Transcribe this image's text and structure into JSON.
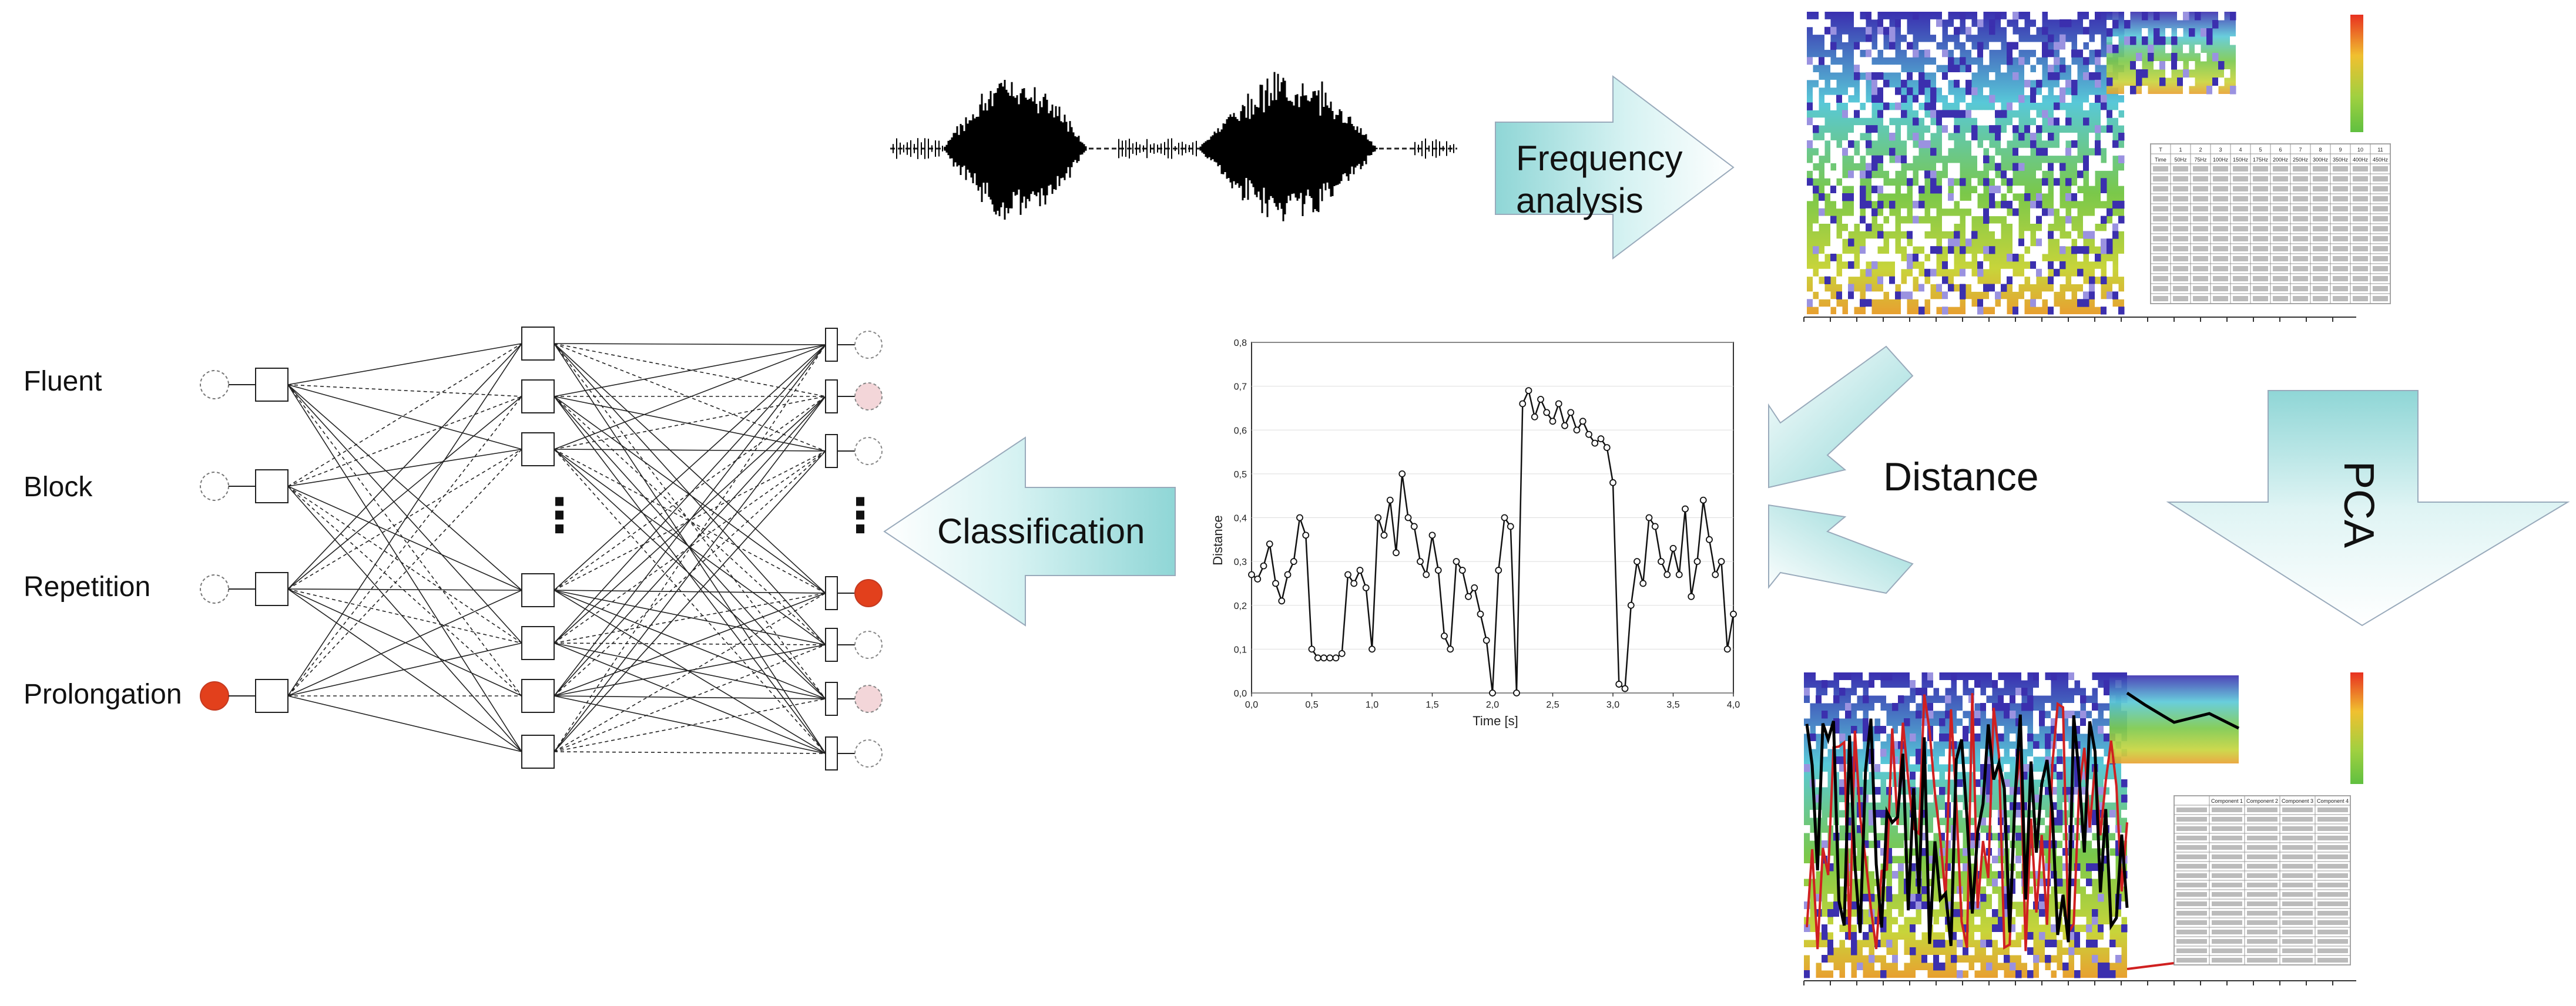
{
  "network": {
    "outputs": [
      {
        "label": "Fluent",
        "active": false
      },
      {
        "label": "Block",
        "active": false
      },
      {
        "label": "Repetition",
        "active": false
      },
      {
        "label": "Prolongation",
        "active": true
      }
    ],
    "ellipsis": "⋮"
  },
  "arrows": {
    "frequency": "Frequency\nanalysis",
    "classification": "Classification",
    "distance": "Distance",
    "pca": "PCA"
  },
  "distance_plot": {
    "ylabel": "Distance",
    "xlabel": "Time [s]"
  },
  "chart_data": {
    "type": "line",
    "title": "",
    "xlabel": "Time [s]",
    "ylabel": "Distance",
    "xlim": [
      0,
      4
    ],
    "ylim": [
      0,
      0.8
    ],
    "x_ticks": [
      "0,0",
      "0,5",
      "1,0",
      "1,5",
      "2,0",
      "2,5",
      "3,0",
      "3,5",
      "4,0"
    ],
    "y_ticks": [
      "0,0",
      "0,1",
      "0,2",
      "0,3",
      "0,4",
      "0,5",
      "0,6",
      "0,7",
      "0,8"
    ],
    "x": [
      0.0,
      0.05,
      0.1,
      0.15,
      0.2,
      0.25,
      0.3,
      0.35,
      0.4,
      0.45,
      0.5,
      0.55,
      0.6,
      0.65,
      0.7,
      0.75,
      0.8,
      0.85,
      0.9,
      0.95,
      1.0,
      1.05,
      1.1,
      1.15,
      1.2,
      1.25,
      1.3,
      1.35,
      1.4,
      1.45,
      1.5,
      1.55,
      1.6,
      1.65,
      1.7,
      1.75,
      1.8,
      1.85,
      1.9,
      1.95,
      2.0,
      2.05,
      2.1,
      2.15,
      2.2,
      2.25,
      2.3,
      2.35,
      2.4,
      2.45,
      2.5,
      2.55,
      2.6,
      2.65,
      2.7,
      2.75,
      2.8,
      2.85,
      2.9,
      2.95,
      3.0,
      3.05,
      3.1,
      3.15,
      3.2,
      3.25,
      3.3,
      3.35,
      3.4,
      3.45,
      3.5,
      3.55,
      3.6,
      3.65,
      3.7,
      3.75,
      3.8,
      3.85,
      3.9,
      3.95,
      4.0
    ],
    "values": [
      0.27,
      0.26,
      0.29,
      0.34,
      0.25,
      0.21,
      0.27,
      0.3,
      0.4,
      0.36,
      0.1,
      0.08,
      0.08,
      0.08,
      0.08,
      0.09,
      0.27,
      0.25,
      0.28,
      0.24,
      0.1,
      0.4,
      0.36,
      0.44,
      0.32,
      0.5,
      0.4,
      0.38,
      0.3,
      0.27,
      0.36,
      0.28,
      0.13,
      0.1,
      0.3,
      0.28,
      0.22,
      0.24,
      0.18,
      0.12,
      0.0,
      0.28,
      0.4,
      0.38,
      0.0,
      0.66,
      0.69,
      0.63,
      0.67,
      0.64,
      0.62,
      0.66,
      0.61,
      0.64,
      0.6,
      0.62,
      0.59,
      0.57,
      0.58,
      0.56,
      0.48,
      0.02,
      0.01,
      0.2,
      0.3,
      0.25,
      0.4,
      0.38,
      0.3,
      0.27,
      0.33,
      0.27,
      0.42,
      0.22,
      0.3,
      0.44,
      0.35,
      0.27,
      0.3,
      0.1,
      0.18
    ]
  },
  "tables": {
    "top_header": [
      "T",
      "1",
      "2",
      "3",
      "4",
      "5",
      "6",
      "7",
      "8",
      "9",
      "10",
      "11"
    ],
    "top_subheader": [
      "Time",
      "50Hz",
      "75Hz",
      "100Hz",
      "150Hz",
      "175Hz",
      "200Hz",
      "250Hz",
      "300Hz",
      "350Hz",
      "400Hz",
      "450Hz"
    ],
    "bottom_header": [
      "",
      "Component 1",
      "Component 2",
      "Component 3",
      "Component 4"
    ]
  }
}
